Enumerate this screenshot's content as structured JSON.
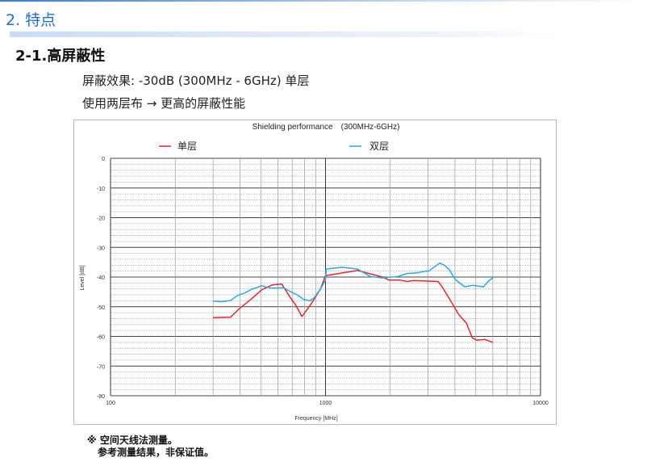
{
  "header": {
    "section_title": "2. 特点",
    "subsection_title": "2-1.高屏蔽性"
  },
  "body": {
    "line1": "屏蔽效果: -30dB (300MHz - 6GHz) 单层",
    "line2": "使用两层布 → 更高的屏蔽性能"
  },
  "notes": [
    "※ 空间天线法测量。",
    "参考测量结果，非保证值。"
  ],
  "chart_data": {
    "type": "line",
    "title": "Shielding performance　(300MHz-6GHz)",
    "xlabel": "Frequency [MHz]",
    "ylabel": "Level [dB]",
    "xscale": "log",
    "xlim": [
      100,
      10000
    ],
    "ylim": [
      -80,
      0
    ],
    "xticks": [
      "100",
      "1000",
      "10000"
    ],
    "yticks": [
      "0",
      "-10",
      "-20",
      "-30",
      "-40",
      "-50",
      "-60",
      "-70",
      "-80"
    ],
    "grid": true,
    "legend": "top",
    "series": [
      {
        "name": "单层",
        "color": "#e8242a",
        "x": [
          300,
          362,
          400,
          450,
          505,
          567,
          626,
          680,
          727,
          777,
          858,
          948,
          1000,
          1410,
          1840,
          1968,
          2210,
          2400,
          2570,
          3340,
          3500,
          3820,
          4150,
          4520,
          4820,
          5060,
          5500,
          6000
        ],
        "y": [
          -53.7,
          -53.5,
          -50.5,
          -47.5,
          -44.3,
          -42.6,
          -42.4,
          -46.5,
          -49.5,
          -53.3,
          -49,
          -44,
          -39.5,
          -37.8,
          -40,
          -41,
          -41,
          -41.5,
          -41.2,
          -41.5,
          -43.5,
          -48,
          -52.5,
          -55.5,
          -60.5,
          -61.3,
          -61,
          -62
        ]
      },
      {
        "name": "双层",
        "color": "#29a8e8",
        "x": [
          300,
          328,
          362,
          390,
          420,
          457,
          505,
          557,
          637,
          692,
          738,
          790,
          845,
          885,
          948,
          1000,
          1007,
          1196,
          1410,
          1613,
          1840,
          2175,
          2400,
          2650,
          2930,
          3020,
          3400,
          3570,
          3760,
          4010,
          4440,
          4820,
          5420,
          5800,
          6000
        ],
        "y": [
          -48.1,
          -48.3,
          -47.9,
          -46.2,
          -45.4,
          -44,
          -43,
          -43.7,
          -43.6,
          -45,
          -46,
          -47.5,
          -48,
          -47,
          -44,
          -41,
          -37.3,
          -36.7,
          -37.3,
          -39.8,
          -40.3,
          -39.8,
          -38.8,
          -38.6,
          -38,
          -38,
          -35.3,
          -36,
          -37.5,
          -40.8,
          -43.3,
          -42.8,
          -43.3,
          -41,
          -40.3
        ]
      }
    ]
  }
}
